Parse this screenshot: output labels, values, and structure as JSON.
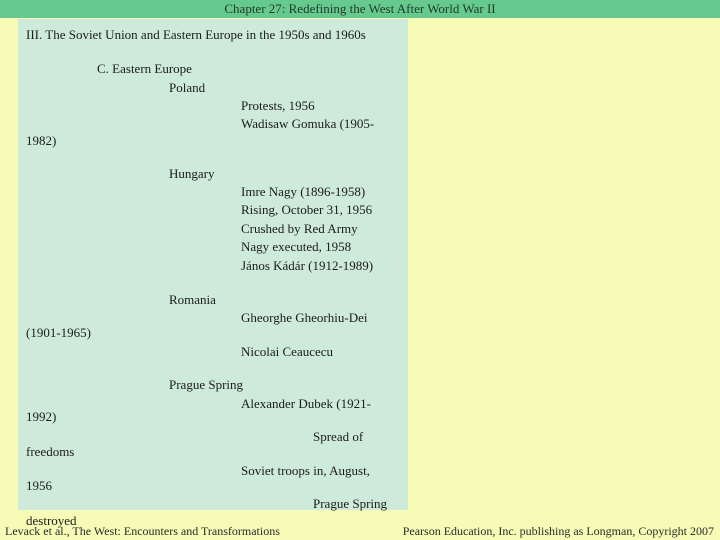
{
  "header": {
    "title": "Chapter 27: Redefining the West After World War II",
    "bar_color": "#66c98e"
  },
  "slide": {
    "heading": "III. The Soviet Union  and Eastern Europe in the 1950s and 1960s",
    "section": "C. Eastern Europe",
    "poland": {
      "label": "Poland",
      "items": [
        "Protests, 1956",
        "Wadisaw Gomuka (1905-"
      ],
      "wrap": "1982)"
    },
    "hungary": {
      "label": "Hungary",
      "items": [
        "Imre Nagy (1896-1958)",
        "Rising, October 31, 1956",
        "Crushed by Red Army",
        "Nagy executed, 1958",
        "János Kádár (1912-1989)"
      ]
    },
    "romania": {
      "label": "Romania",
      "items": [
        "Gheorghe Gheorhiu-Dei",
        "Nicolai Ceaucecu"
      ],
      "wrap": "(1901-1965)"
    },
    "prague": {
      "label": "Prague Spring",
      "items": [
        "Alexander Dubek (1921-",
        "Spread of",
        "Soviet troops in, August,",
        "Prague Spring"
      ],
      "wraps": [
        "1992)",
        "freedoms",
        "1956",
        "destroyed"
      ]
    }
  },
  "footer": {
    "left": "Levack et al., The West: Encounters and Transformations",
    "right": "Pearson Education, Inc. publishing as Longman, Copyright 2007"
  },
  "colors": {
    "background": "#f6fbb6",
    "content_box": "#cdeadb"
  }
}
